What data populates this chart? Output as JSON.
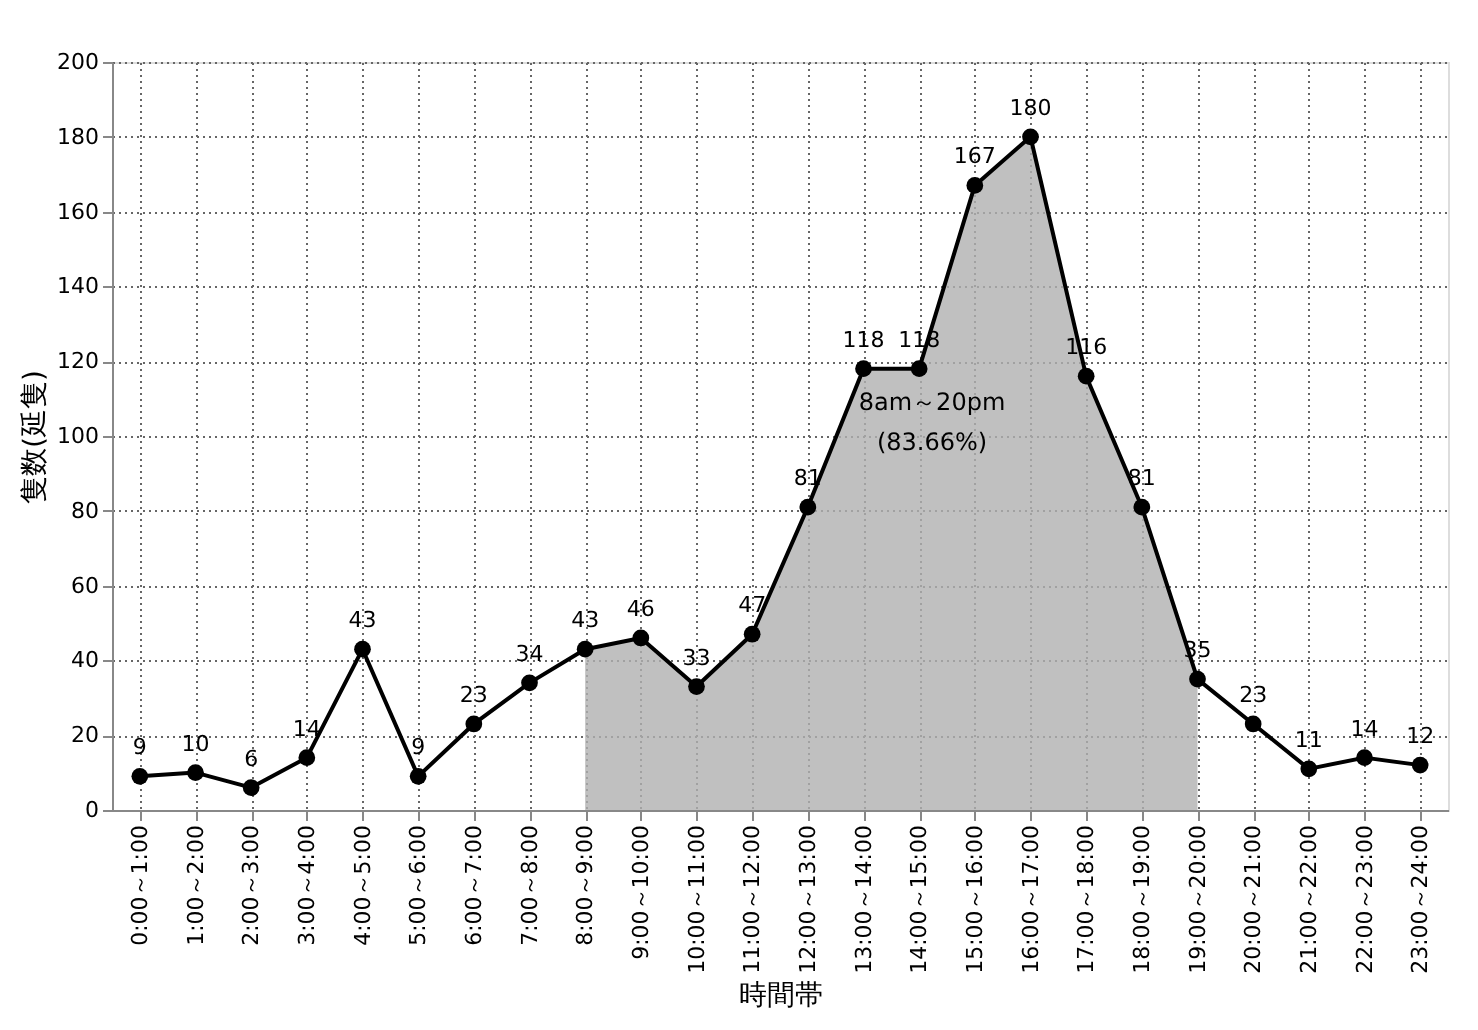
{
  "chart_data": {
    "type": "line",
    "xlabel": "時間帯",
    "ylabel": "隻数(延隻)",
    "categories": [
      "0:00～1:00",
      "1:00～2:00",
      "2:00～3:00",
      "3:00～4:00",
      "4:00～5:00",
      "5:00～6:00",
      "6:00～7:00",
      "7:00～8:00",
      "8:00～9:00",
      "9:00～10:00",
      "10:00～11:00",
      "11:00～12:00",
      "12:00～13:00",
      "13:00～14:00",
      "14:00～15:00",
      "15:00～16:00",
      "16:00～17:00",
      "17:00～18:00",
      "18:00～19:00",
      "19:00～20:00",
      "20:00～21:00",
      "21:00～22:00",
      "22:00～23:00",
      "23:00～24:00"
    ],
    "series": [
      {
        "type": "area",
        "marker": "none",
        "color": "#b0b0b0",
        "values": [
          null,
          null,
          null,
          null,
          null,
          null,
          null,
          null,
          43,
          46,
          33,
          47,
          81,
          118,
          118,
          167,
          180,
          116,
          81,
          35,
          null,
          null,
          null,
          null
        ]
      },
      {
        "color": "#000000",
        "values": [
          9,
          10,
          6,
          14,
          43,
          9,
          23,
          34,
          43,
          46,
          33,
          47,
          81,
          118,
          118,
          167,
          180,
          116,
          81,
          35,
          23,
          11,
          14,
          12
        ],
        "value_labels": [
          "9",
          "10",
          "6",
          "14",
          "43",
          "9",
          "23",
          "34",
          "43",
          "46",
          "33",
          "47",
          "81",
          "118",
          "118",
          "167",
          "180",
          "116",
          "81",
          "35",
          "23",
          "11",
          "14",
          "12"
        ]
      }
    ],
    "ylim": [
      0,
      200
    ],
    "yticks": [
      0,
      20,
      40,
      60,
      80,
      100,
      120,
      140,
      160,
      180,
      200
    ],
    "grid": true,
    "marker": "circle",
    "line_style": "solid",
    "annotations": [
      "8am～20pm",
      "(83.66%)"
    ]
  }
}
